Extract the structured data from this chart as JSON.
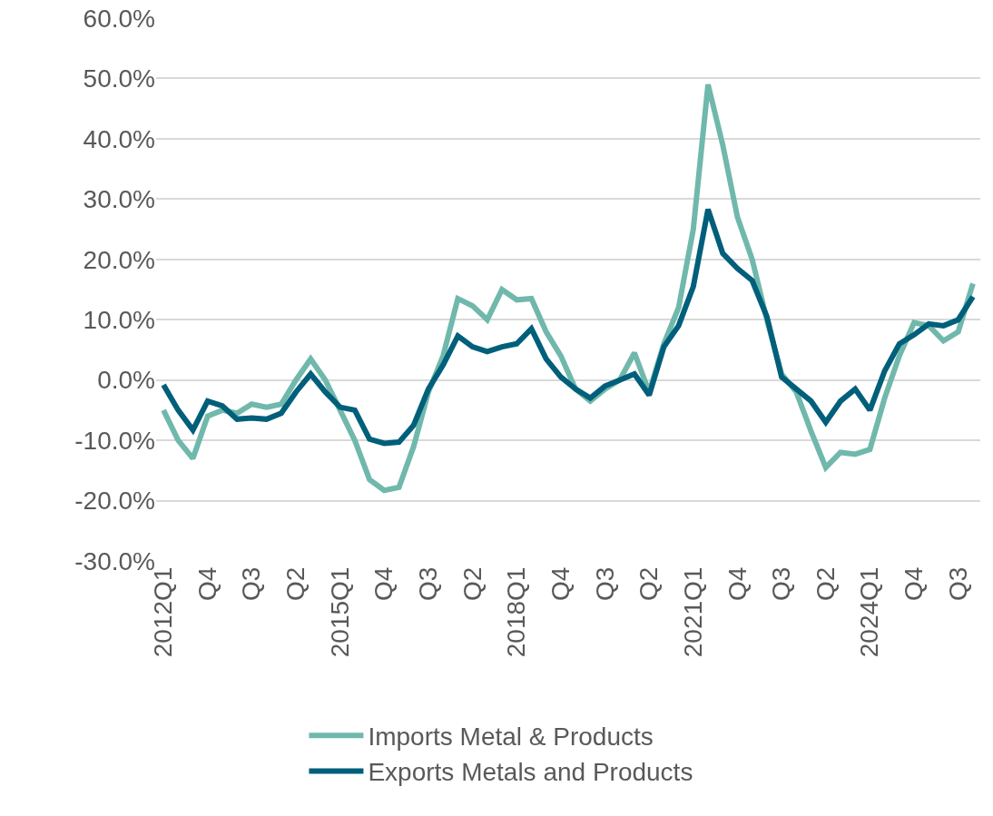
{
  "chart_data": {
    "type": "line",
    "categories": [
      "2012Q1",
      null,
      null,
      "Q4",
      null,
      null,
      "Q3",
      null,
      null,
      "Q2",
      null,
      null,
      "2015Q1",
      null,
      null,
      "Q4",
      null,
      null,
      "Q3",
      null,
      null,
      "Q2",
      null,
      null,
      "2018Q1",
      null,
      null,
      "Q4",
      null,
      null,
      "Q3",
      null,
      null,
      "Q2",
      null,
      null,
      "2021Q1",
      null,
      null,
      "Q4",
      null,
      null,
      "Q3",
      null,
      null,
      "Q2",
      null,
      null,
      "2024Q1",
      null,
      null,
      "Q4",
      null,
      null,
      "Q3",
      null
    ],
    "series": [
      {
        "name": "Imports Metal & Products",
        "color": "#70b8ac",
        "values": [
          -5,
          -10,
          -13,
          -6,
          -5,
          -5.5,
          -4,
          -4.5,
          -4,
          0,
          3.5,
          0,
          -5,
          -10,
          -16.5,
          -18.3,
          -17.8,
          -11,
          -2,
          4,
          13.5,
          12.3,
          10,
          15,
          13.3,
          13.5,
          8,
          4,
          -1.5,
          -3.5,
          -1.5,
          0,
          4.5,
          -2,
          6,
          12,
          25,
          49,
          39,
          27,
          20,
          10,
          1,
          -2,
          -8.5,
          -14.5,
          -12,
          -12.3,
          -11.5,
          -3,
          4,
          9.5,
          9,
          6.5,
          8,
          16
        ]
      },
      {
        "name": "Exports Metals and Products",
        "color": "#005f7a",
        "values": [
          -0.8,
          -5,
          -8.3,
          -3.5,
          -4.3,
          -6.5,
          -6.3,
          -6.5,
          -5.5,
          -2,
          1,
          -2,
          -4.5,
          -5,
          -9.8,
          -10.5,
          -10.3,
          -7.5,
          -1.5,
          2.5,
          7.3,
          5.5,
          4.7,
          5.5,
          6,
          8.5,
          3.5,
          0.5,
          -1.5,
          -3,
          -1,
          0,
          1,
          -2.5,
          5.5,
          9,
          15.5,
          28.3,
          21,
          18.5,
          16.5,
          10.5,
          0.5,
          -1.5,
          -3.5,
          -7,
          -3.5,
          -1.5,
          -5,
          1.5,
          6,
          7.5,
          9.3,
          9,
          10,
          13.8
        ]
      }
    ],
    "ylim": [
      -30,
      60
    ],
    "yticks": [
      {
        "value": -30,
        "label": "-30.0%"
      },
      {
        "value": -20,
        "label": "-20.0%"
      },
      {
        "value": -10,
        "label": "-10.0%"
      },
      {
        "value": 0,
        "label": "0.0%"
      },
      {
        "value": 10,
        "label": "10.0%"
      },
      {
        "value": 20,
        "label": "20.0%"
      },
      {
        "value": 30,
        "label": "30.0%"
      },
      {
        "value": 40,
        "label": "40.0%"
      },
      {
        "value": 50,
        "label": "50.0%"
      },
      {
        "value": 60,
        "label": "60.0%"
      }
    ],
    "grid": "y",
    "legend": "bottom",
    "marker": "none",
    "line_style": "solid"
  }
}
